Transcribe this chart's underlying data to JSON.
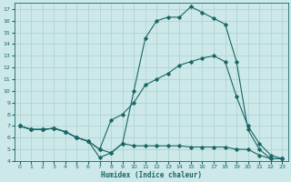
{
  "xlabel": "Humidex (Indice chaleur)",
  "bg_color": "#cce8e8",
  "line_color": "#1a6666",
  "grid_color": "#aad0d0",
  "xlim": [
    -0.5,
    23.5
  ],
  "ylim": [
    4,
    17.5
  ],
  "yticks": [
    4,
    5,
    6,
    7,
    8,
    9,
    10,
    11,
    12,
    13,
    14,
    15,
    16,
    17
  ],
  "xticks": [
    0,
    1,
    2,
    3,
    4,
    5,
    6,
    7,
    8,
    9,
    10,
    11,
    12,
    13,
    14,
    15,
    16,
    17,
    18,
    19,
    20,
    21,
    22,
    23
  ],
  "lines": [
    {
      "x": [
        0,
        1,
        2,
        3,
        4,
        5,
        6,
        7,
        8,
        9,
        10,
        11,
        12,
        13,
        14,
        15,
        16,
        17,
        18,
        19,
        20,
        21,
        22,
        23
      ],
      "y": [
        7,
        6.7,
        6.7,
        6.8,
        6.5,
        6.0,
        5.7,
        4.3,
        4.7,
        5.5,
        5.3,
        5.3,
        5.3,
        5.3,
        5.3,
        5.2,
        5.2,
        5.2,
        5.2,
        5.0,
        5.0,
        4.5,
        4.2,
        4.2
      ]
    },
    {
      "x": [
        0,
        1,
        2,
        3,
        4,
        5,
        6,
        7,
        8,
        9,
        10,
        11,
        12,
        13,
        14,
        15,
        16,
        17,
        18,
        19,
        20,
        21,
        22,
        23
      ],
      "y": [
        7,
        6.7,
        6.7,
        6.8,
        6.5,
        6.0,
        5.7,
        5.0,
        4.7,
        5.5,
        10.0,
        14.5,
        16.0,
        16.3,
        16.3,
        17.2,
        16.7,
        16.2,
        15.7,
        12.5,
        6.7,
        5.0,
        4.2,
        4.2
      ]
    },
    {
      "x": [
        0,
        1,
        2,
        3,
        4,
        5,
        6,
        7,
        8,
        9,
        10,
        11,
        12,
        13,
        14,
        15,
        16,
        17,
        18,
        19,
        20,
        21,
        22,
        23
      ],
      "y": [
        7,
        6.7,
        6.7,
        6.8,
        6.5,
        6.0,
        5.7,
        5.0,
        7.5,
        8.0,
        9.0,
        10.5,
        11.0,
        11.5,
        12.2,
        12.5,
        12.8,
        13.0,
        12.5,
        9.5,
        7.0,
        5.5,
        4.5,
        4.2
      ]
    }
  ]
}
